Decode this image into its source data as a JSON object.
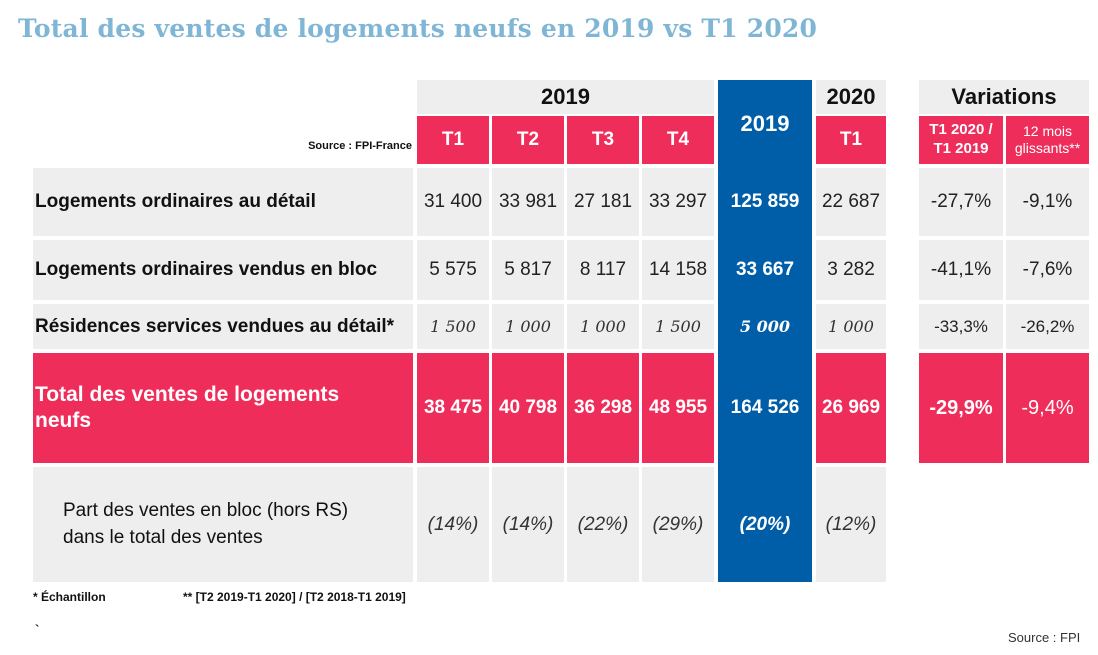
{
  "title": "Total des ventes de logements neufs en 2019 vs T1 2020",
  "source_top": "Source : FPI-France",
  "headers": {
    "year2019": "2019",
    "year2019_total": "2019",
    "year2020": "2020",
    "variations": "Variations",
    "quarters": [
      "T1",
      "T2",
      "T3",
      "T4"
    ],
    "t1_2020": "T1",
    "var1": "T1 2020 / T1 2019",
    "var2": "12 mois glissants**"
  },
  "rows": [
    {
      "label": "Logements ordinaires au détail",
      "q": [
        "31 400",
        "33 981",
        "27 181",
        "33 297"
      ],
      "total2019": "125 859",
      "t1_2020": "22 687",
      "var1": "-27,7%",
      "var2": "-9,1%"
    },
    {
      "label": "Logements ordinaires vendus en bloc",
      "q": [
        "5 575",
        "5 817",
        "8 117",
        "14 158"
      ],
      "total2019": "33 667",
      "t1_2020": "3 282",
      "var1": "-41,1%",
      "var2": "-7,6%"
    },
    {
      "label": "Résidences services vendues au détail*",
      "q": [
        "1 500",
        "1 000",
        "1 000",
        "1 500"
      ],
      "total2019": "5 000",
      "t1_2020": "1 000",
      "var1": "-33,3%",
      "var2": "-26,2%"
    }
  ],
  "total_row": {
    "label": "Total des ventes de logements neufs",
    "q": [
      "38 475",
      "40 798",
      "36 298",
      "48 955"
    ],
    "total2019": "164 526",
    "t1_2020": "26 969",
    "var1": "-29,9%",
    "var2": "-9,4%"
  },
  "share_row": {
    "label": "Part des ventes en bloc (hors RS) dans le total des ventes",
    "q": [
      "(14%)",
      "(14%)",
      "(22%)",
      "(29%)"
    ],
    "total2019": "(20%)",
    "t1_2020": "(12%)"
  },
  "footnotes": {
    "sample": "* Échantillon",
    "rolling": "** [T2 2019-T1 2020] / [T2 2018-T1 2019]",
    "tick": "`",
    "source_bottom": "Source : FPI"
  },
  "colors": {
    "title": "#7fb6d6",
    "pink": "#ee2d5b",
    "blue": "#005ea8",
    "grey": "#eeeeef"
  }
}
